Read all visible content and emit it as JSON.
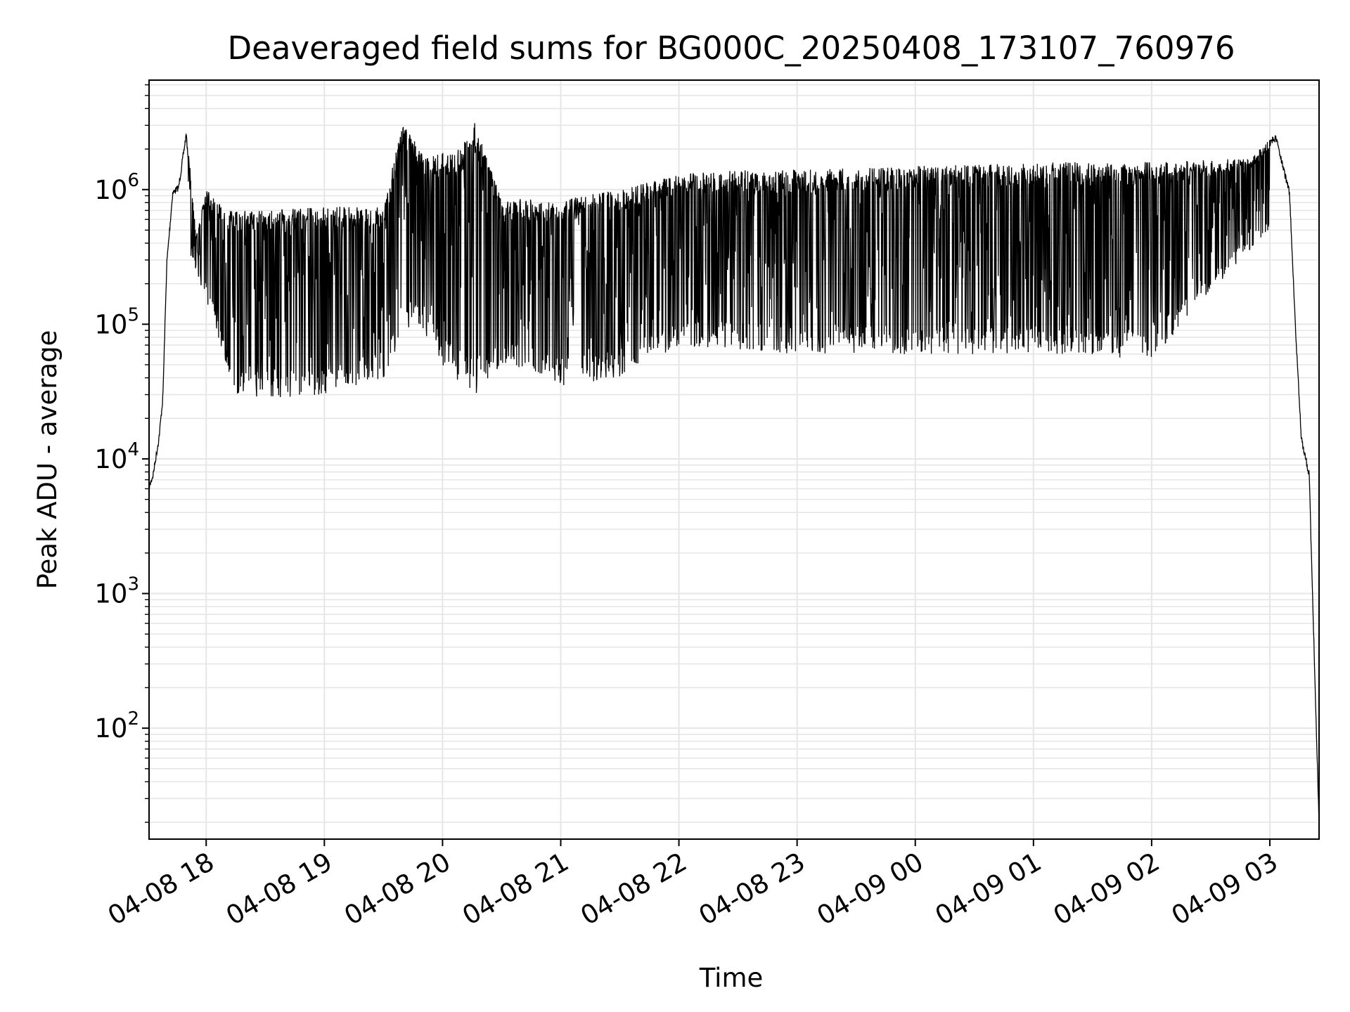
{
  "chart_data": {
    "type": "line",
    "title": "Deaveraged field sums for BG000C_20250408_173107_760976",
    "xlabel": "Time",
    "ylabel": "Peak ADU - average",
    "yscale": "log",
    "ylim": [
      15,
      6500000
    ],
    "xlim": [
      "04-08 17:31",
      "04-09 03:25"
    ],
    "grid": true,
    "series_color": "#000000",
    "grid_color": "#e6e6e6",
    "x_ticks": [
      {
        "t": "04-08 18:00",
        "label": "04-08 18"
      },
      {
        "t": "04-08 19:00",
        "label": "04-08 19"
      },
      {
        "t": "04-08 20:00",
        "label": "04-08 20"
      },
      {
        "t": "04-08 21:00",
        "label": "04-08 21"
      },
      {
        "t": "04-08 22:00",
        "label": "04-08 22"
      },
      {
        "t": "04-08 23:00",
        "label": "04-08 23"
      },
      {
        "t": "04-09 00:00",
        "label": "04-09 00"
      },
      {
        "t": "04-09 01:00",
        "label": "04-09 01"
      },
      {
        "t": "04-09 02:00",
        "label": "04-09 02"
      },
      {
        "t": "04-09 03:00",
        "label": "04-09 03"
      }
    ],
    "y_ticks": [
      {
        "value": 100,
        "base": "10",
        "exp": "2"
      },
      {
        "value": 1000,
        "base": "10",
        "exp": "3"
      },
      {
        "value": 10000,
        "base": "10",
        "exp": "4"
      },
      {
        "value": 100000,
        "base": "10",
        "exp": "5"
      },
      {
        "value": 1000000,
        "base": "10",
        "exp": "6"
      }
    ],
    "series": [
      {
        "upper_envelope": [
          [
            "04-08 17:31",
            6500
          ],
          [
            "04-08 17:33",
            8000
          ],
          [
            "04-08 17:36",
            15000
          ],
          [
            "04-08 17:38",
            30000
          ],
          [
            "04-08 17:40",
            300000
          ],
          [
            "04-08 17:43",
            1000000
          ],
          [
            "04-08 17:46",
            1100000
          ],
          [
            "04-08 17:50",
            2800000
          ],
          [
            "04-08 17:55",
            450000
          ],
          [
            "04-08 18:00",
            1000000
          ],
          [
            "04-08 18:10",
            700000
          ],
          [
            "04-08 18:30",
            700000
          ],
          [
            "04-08 19:00",
            750000
          ],
          [
            "04-08 19:30",
            750000
          ],
          [
            "04-08 19:40",
            3200000
          ],
          [
            "04-08 19:50",
            1800000
          ],
          [
            "04-08 20:10",
            2000000
          ],
          [
            "04-08 20:15",
            3600000
          ],
          [
            "04-08 20:30",
            850000
          ],
          [
            "04-08 21:00",
            850000
          ],
          [
            "04-08 21:30",
            1000000
          ],
          [
            "04-08 22:00",
            1300000
          ],
          [
            "04-08 22:30",
            1400000
          ],
          [
            "04-08 23:00",
            1400000
          ],
          [
            "04-09 00:00",
            1500000
          ],
          [
            "04-09 01:00",
            1600000
          ],
          [
            "04-09 02:00",
            1600000
          ],
          [
            "04-09 02:50",
            1700000
          ],
          [
            "04-09 03:03",
            2600000
          ],
          [
            "04-09 03:10",
            1000000
          ],
          [
            "04-09 03:13",
            100000
          ],
          [
            "04-09 03:16",
            15000
          ],
          [
            "04-09 03:20",
            8000
          ],
          [
            "04-09 03:25",
            20
          ]
        ],
        "lower_envelope": [
          [
            "04-08 17:50",
            400000
          ],
          [
            "04-08 18:00",
            150000
          ],
          [
            "04-08 18:15",
            30000
          ],
          [
            "04-08 18:30",
            28000
          ],
          [
            "04-08 19:00",
            30000
          ],
          [
            "04-08 19:30",
            40000
          ],
          [
            "04-08 19:45",
            100000
          ],
          [
            "04-08 20:00",
            50000
          ],
          [
            "04-08 20:15",
            28000
          ],
          [
            "04-08 20:30",
            50000
          ],
          [
            "04-08 21:00",
            35000
          ],
          [
            "04-08 21:30",
            40000
          ],
          [
            "04-08 22:00",
            70000
          ],
          [
            "04-08 23:00",
            60000
          ],
          [
            "04-09 00:00",
            60000
          ],
          [
            "04-09 01:00",
            60000
          ],
          [
            "04-09 02:00",
            55000
          ],
          [
            "04-09 02:40",
            250000
          ],
          [
            "04-09 03:00",
            500000
          ]
        ]
      }
    ]
  }
}
